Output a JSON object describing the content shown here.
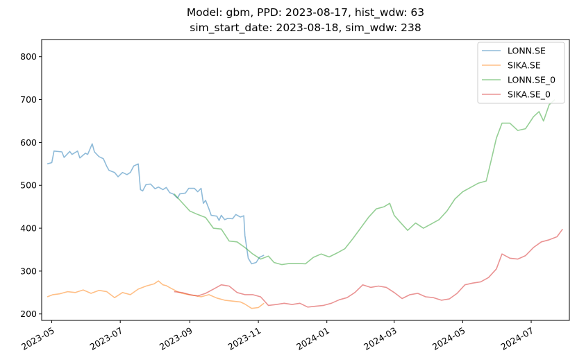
{
  "chart_data": {
    "type": "line",
    "title_line1": "Model: gbm, PPD: 2023-08-17, hist_wdw: 63",
    "title_line2": "sim_start_date: 2023-08-18, sim_wdw: 238",
    "xlabel": "",
    "ylabel": "",
    "ylim": [
      185,
      840
    ],
    "xlim": [
      "2023-04-22",
      "2024-08-04"
    ],
    "yticks": [
      200,
      300,
      400,
      500,
      600,
      700,
      800
    ],
    "xticks": [
      "2023-05",
      "2023-07",
      "2023-09",
      "2023-11",
      "2024-01",
      "2024-03",
      "2024-05",
      "2024-07"
    ],
    "grid": false,
    "legend_position": "top-right",
    "series": [
      {
        "name": "LONN.SE",
        "color": "#1f77b4",
        "points": [
          [
            "2023-04-27",
            550
          ],
          [
            "2023-05-01",
            553
          ],
          [
            "2023-05-03",
            580
          ],
          [
            "2023-05-10",
            578
          ],
          [
            "2023-05-12",
            565
          ],
          [
            "2023-05-17",
            579
          ],
          [
            "2023-05-19",
            572
          ],
          [
            "2023-05-24",
            580
          ],
          [
            "2023-05-26",
            564
          ],
          [
            "2023-05-31",
            575
          ],
          [
            "2023-06-02",
            572
          ],
          [
            "2023-06-06",
            597
          ],
          [
            "2023-06-08",
            578
          ],
          [
            "2023-06-12",
            567
          ],
          [
            "2023-06-16",
            562
          ],
          [
            "2023-06-19",
            544
          ],
          [
            "2023-06-21",
            535
          ],
          [
            "2023-06-26",
            530
          ],
          [
            "2023-06-29",
            520
          ],
          [
            "2023-07-03",
            530
          ],
          [
            "2023-07-07",
            525
          ],
          [
            "2023-07-10",
            530
          ],
          [
            "2023-07-13",
            545
          ],
          [
            "2023-07-17",
            550
          ],
          [
            "2023-07-19",
            490
          ],
          [
            "2023-07-21",
            487
          ],
          [
            "2023-07-24",
            502
          ],
          [
            "2023-07-28",
            503
          ],
          [
            "2023-08-01",
            492
          ],
          [
            "2023-08-04",
            496
          ],
          [
            "2023-08-08",
            490
          ],
          [
            "2023-08-11",
            495
          ],
          [
            "2023-08-14",
            483
          ],
          [
            "2023-08-17",
            480
          ],
          [
            "2023-08-21",
            470
          ],
          [
            "2023-08-23",
            480
          ],
          [
            "2023-08-28",
            482
          ],
          [
            "2023-08-31",
            493
          ],
          [
            "2023-09-05",
            493
          ],
          [
            "2023-09-08",
            485
          ],
          [
            "2023-09-11",
            493
          ],
          [
            "2023-09-13",
            458
          ],
          [
            "2023-09-15",
            465
          ],
          [
            "2023-09-18",
            445
          ],
          [
            "2023-09-20",
            430
          ],
          [
            "2023-09-25",
            428
          ],
          [
            "2023-09-27",
            418
          ],
          [
            "2023-09-29",
            430
          ],
          [
            "2023-10-02",
            420
          ],
          [
            "2023-10-05",
            423
          ],
          [
            "2023-10-09",
            422
          ],
          [
            "2023-10-12",
            432
          ],
          [
            "2023-10-16",
            426
          ],
          [
            "2023-10-19",
            429
          ],
          [
            "2023-10-20",
            383
          ],
          [
            "2023-10-23",
            330
          ],
          [
            "2023-10-26",
            317
          ],
          [
            "2023-10-30",
            320
          ],
          [
            "2023-11-02",
            332
          ],
          [
            "2023-11-06",
            337
          ]
        ]
      },
      {
        "name": "SIKA.SE",
        "color": "#ff7f0e",
        "points": [
          [
            "2023-04-27",
            240
          ],
          [
            "2023-05-02",
            245
          ],
          [
            "2023-05-08",
            247
          ],
          [
            "2023-05-15",
            252
          ],
          [
            "2023-05-22",
            250
          ],
          [
            "2023-05-29",
            256
          ],
          [
            "2023-06-05",
            248
          ],
          [
            "2023-06-12",
            255
          ],
          [
            "2023-06-19",
            252
          ],
          [
            "2023-06-26",
            238
          ],
          [
            "2023-07-03",
            250
          ],
          [
            "2023-07-10",
            245
          ],
          [
            "2023-07-17",
            258
          ],
          [
            "2023-07-24",
            265
          ],
          [
            "2023-07-31",
            270
          ],
          [
            "2023-08-04",
            277
          ],
          [
            "2023-08-08",
            268
          ],
          [
            "2023-08-11",
            266
          ],
          [
            "2023-08-15",
            260
          ],
          [
            "2023-08-21",
            252
          ],
          [
            "2023-08-25",
            248
          ],
          [
            "2023-08-31",
            245
          ],
          [
            "2023-09-05",
            243
          ],
          [
            "2023-09-11",
            240
          ],
          [
            "2023-09-18",
            245
          ],
          [
            "2023-09-25",
            237
          ],
          [
            "2023-10-02",
            232
          ],
          [
            "2023-10-09",
            230
          ],
          [
            "2023-10-16",
            228
          ],
          [
            "2023-10-20",
            223
          ],
          [
            "2023-10-26",
            213
          ],
          [
            "2023-11-01",
            215
          ],
          [
            "2023-11-06",
            225
          ]
        ]
      },
      {
        "name": "LONN.SE_0",
        "color": "#2ca02c",
        "points": [
          [
            "2023-08-18",
            480
          ],
          [
            "2023-08-25",
            460
          ],
          [
            "2023-09-01",
            440
          ],
          [
            "2023-09-08",
            432
          ],
          [
            "2023-09-15",
            425
          ],
          [
            "2023-09-22",
            400
          ],
          [
            "2023-09-29",
            398
          ],
          [
            "2023-10-06",
            370
          ],
          [
            "2023-10-13",
            368
          ],
          [
            "2023-10-20",
            355
          ],
          [
            "2023-10-27",
            340
          ],
          [
            "2023-11-03",
            328
          ],
          [
            "2023-11-10",
            335
          ],
          [
            "2023-11-15",
            320
          ],
          [
            "2023-11-22",
            315
          ],
          [
            "2023-11-29",
            318
          ],
          [
            "2023-12-06",
            318
          ],
          [
            "2023-12-13",
            317
          ],
          [
            "2023-12-20",
            332
          ],
          [
            "2023-12-27",
            340
          ],
          [
            "2024-01-03",
            333
          ],
          [
            "2024-01-10",
            342
          ],
          [
            "2024-01-17",
            352
          ],
          [
            "2024-01-24",
            375
          ],
          [
            "2024-01-31",
            400
          ],
          [
            "2024-02-07",
            425
          ],
          [
            "2024-02-14",
            445
          ],
          [
            "2024-02-21",
            450
          ],
          [
            "2024-02-26",
            458
          ],
          [
            "2024-03-01",
            430
          ],
          [
            "2024-03-06",
            415
          ],
          [
            "2024-03-13",
            395
          ],
          [
            "2024-03-20",
            412
          ],
          [
            "2024-03-27",
            400
          ],
          [
            "2024-04-03",
            410
          ],
          [
            "2024-04-10",
            420
          ],
          [
            "2024-04-17",
            440
          ],
          [
            "2024-04-24",
            468
          ],
          [
            "2024-05-01",
            485
          ],
          [
            "2024-05-08",
            495
          ],
          [
            "2024-05-15",
            505
          ],
          [
            "2024-05-22",
            510
          ],
          [
            "2024-05-27",
            565
          ],
          [
            "2024-05-31",
            610
          ],
          [
            "2024-06-05",
            645
          ],
          [
            "2024-06-12",
            645
          ],
          [
            "2024-06-19",
            628
          ],
          [
            "2024-06-26",
            632
          ],
          [
            "2024-07-03",
            660
          ],
          [
            "2024-07-08",
            672
          ],
          [
            "2024-07-12",
            650
          ],
          [
            "2024-07-17",
            688
          ],
          [
            "2024-07-22",
            700
          ]
        ]
      },
      {
        "name": "SIKA.SE_0",
        "color": "#d62728",
        "points": [
          [
            "2023-08-18",
            252
          ],
          [
            "2023-08-25",
            250
          ],
          [
            "2023-09-01",
            245
          ],
          [
            "2023-09-08",
            242
          ],
          [
            "2023-09-15",
            248
          ],
          [
            "2023-09-22",
            258
          ],
          [
            "2023-09-29",
            268
          ],
          [
            "2023-10-06",
            265
          ],
          [
            "2023-10-13",
            250
          ],
          [
            "2023-10-20",
            245
          ],
          [
            "2023-10-27",
            245
          ],
          [
            "2023-11-03",
            240
          ],
          [
            "2023-11-10",
            220
          ],
          [
            "2023-11-17",
            222
          ],
          [
            "2023-11-24",
            225
          ],
          [
            "2023-12-01",
            222
          ],
          [
            "2023-12-08",
            225
          ],
          [
            "2023-12-15",
            216
          ],
          [
            "2023-12-22",
            218
          ],
          [
            "2023-12-29",
            220
          ],
          [
            "2024-01-05",
            225
          ],
          [
            "2024-01-12",
            233
          ],
          [
            "2024-01-19",
            238
          ],
          [
            "2024-01-26",
            250
          ],
          [
            "2024-02-02",
            268
          ],
          [
            "2024-02-09",
            262
          ],
          [
            "2024-02-16",
            265
          ],
          [
            "2024-02-23",
            262
          ],
          [
            "2024-03-01",
            250
          ],
          [
            "2024-03-08",
            236
          ],
          [
            "2024-03-15",
            245
          ],
          [
            "2024-03-22",
            248
          ],
          [
            "2024-03-29",
            240
          ],
          [
            "2024-04-05",
            238
          ],
          [
            "2024-04-12",
            232
          ],
          [
            "2024-04-19",
            235
          ],
          [
            "2024-04-26",
            248
          ],
          [
            "2024-05-03",
            268
          ],
          [
            "2024-05-10",
            272
          ],
          [
            "2024-05-17",
            275
          ],
          [
            "2024-05-24",
            285
          ],
          [
            "2024-05-31",
            305
          ],
          [
            "2024-06-05",
            340
          ],
          [
            "2024-06-12",
            330
          ],
          [
            "2024-06-19",
            328
          ],
          [
            "2024-06-26",
            336
          ],
          [
            "2024-07-03",
            355
          ],
          [
            "2024-07-10",
            368
          ],
          [
            "2024-07-17",
            373
          ],
          [
            "2024-07-24",
            380
          ],
          [
            "2024-07-29",
            398
          ]
        ]
      }
    ]
  }
}
